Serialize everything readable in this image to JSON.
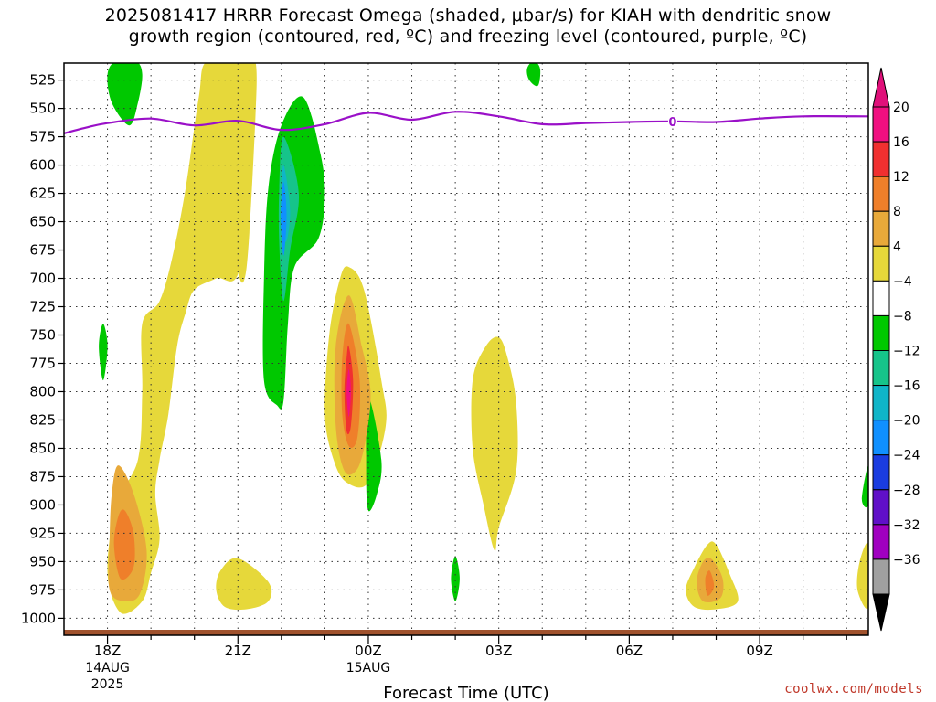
{
  "chart_data": {
    "type": "time-height contour (shaded omega with contour overlay)",
    "title_line1": "2025081417 HRRR Forecast Omega (shaded, μbar/s) for KIAH with dendritic snow",
    "title_line2": "growth region (contoured, red, ºC) and freezing level (contoured, purple, ºC)",
    "xlabel": "Forecast Time (UTC)",
    "y_axis": {
      "quantity": "pressure (hPa)",
      "inverted": true,
      "range": [
        510,
        1015
      ],
      "ticks": [
        525,
        550,
        575,
        600,
        625,
        650,
        675,
        700,
        725,
        750,
        775,
        800,
        825,
        850,
        875,
        900,
        925,
        950,
        975,
        1000
      ]
    },
    "x_axis": {
      "unit": "hours UTC from 2025-08-14 17Z",
      "range_hours": [
        17,
        35.5
      ],
      "ticks": [
        {
          "hour": 18,
          "label": "18Z",
          "sub1": "14AUG",
          "sub2": "2025"
        },
        {
          "hour": 21,
          "label": "21Z",
          "sub1": "",
          "sub2": ""
        },
        {
          "hour": 24,
          "label": "00Z",
          "sub1": "15AUG",
          "sub2": ""
        },
        {
          "hour": 27,
          "label": "03Z",
          "sub1": "",
          "sub2": ""
        },
        {
          "hour": 30,
          "label": "06Z",
          "sub1": "",
          "sub2": ""
        },
        {
          "hour": 33,
          "label": "09Z",
          "sub1": "",
          "sub2": ""
        }
      ]
    },
    "grid": true,
    "colorbar": {
      "placement": "right",
      "levels": [
        {
          "label": "20",
          "color": "#f01080"
        },
        {
          "label": "16",
          "color": "#f03030"
        },
        {
          "label": "12",
          "color": "#ef7f2a"
        },
        {
          "label": "8",
          "color": "#e8a93a"
        },
        {
          "label": "4",
          "color": "#e6d83a"
        },
        {
          "label": "−4",
          "color": "#ffffff"
        },
        {
          "label": "−8",
          "color": "#00c800"
        },
        {
          "label": "−12",
          "color": "#16c48a"
        },
        {
          "label": "−16",
          "color": "#10b5c8"
        },
        {
          "label": "−20",
          "color": "#1090ff"
        },
        {
          "label": "−24",
          "color": "#1a3ce0"
        },
        {
          "label": "−28",
          "color": "#6010c8"
        },
        {
          "label": "−32",
          "color": "#a000c0"
        },
        {
          "label": "−36",
          "color": "#a0a0a0"
        }
      ],
      "max_arrow_color": "#e0107a",
      "min_arrow_color": "#000000"
    },
    "freezing_level": {
      "label": "0",
      "color": "#9a10c8",
      "points": [
        [
          17.0,
          572
        ],
        [
          17.5,
          567
        ],
        [
          18.0,
          563
        ],
        [
          19.0,
          559
        ],
        [
          20.0,
          565
        ],
        [
          21.0,
          561
        ],
        [
          22.0,
          569
        ],
        [
          23.0,
          564
        ],
        [
          24.0,
          554
        ],
        [
          25.0,
          560
        ],
        [
          26.0,
          553
        ],
        [
          27.0,
          557
        ],
        [
          28.0,
          564
        ],
        [
          29.0,
          563
        ],
        [
          30.0,
          562
        ],
        [
          31.0,
          561.5
        ],
        [
          32.0,
          562
        ],
        [
          33.0,
          559
        ],
        [
          34.0,
          557
        ],
        [
          35.5,
          557
        ]
      ]
    },
    "surface_fill_color": "#a0522d",
    "omega_regions": [
      {
        "level": 4,
        "points": [
          [
            21.25,
            508
          ],
          [
            21.3,
            560
          ],
          [
            21.05,
            690
          ],
          [
            20.5,
            700
          ],
          [
            20.0,
            710
          ],
          [
            19.8,
            730
          ],
          [
            19.6,
            760
          ],
          [
            19.4,
            820
          ],
          [
            19.2,
            860
          ],
          [
            19.1,
            890
          ],
          [
            19.2,
            930
          ],
          [
            19.0,
            960
          ],
          [
            18.8,
            985
          ],
          [
            18.3,
            995
          ],
          [
            18.0,
            960
          ],
          [
            18.2,
            900
          ],
          [
            18.7,
            860
          ],
          [
            18.8,
            800
          ],
          [
            18.8,
            740
          ],
          [
            19.2,
            720
          ],
          [
            19.5,
            680
          ],
          [
            19.8,
            620
          ],
          [
            20.1,
            540
          ],
          [
            20.3,
            508
          ]
        ]
      },
      {
        "level": 4,
        "points": [
          [
            21.1,
            508
          ],
          [
            21.0,
            530
          ],
          [
            20.95,
            600
          ],
          [
            21.0,
            690
          ],
          [
            21.2,
            690
          ],
          [
            21.4,
            560
          ],
          [
            21.4,
            508
          ]
        ]
      },
      {
        "level": 4,
        "points": [
          [
            23.55,
            690
          ],
          [
            23.9,
            710
          ],
          [
            24.3,
            790
          ],
          [
            24.4,
            830
          ],
          [
            24.0,
            880
          ],
          [
            23.5,
            880
          ],
          [
            23.2,
            860
          ],
          [
            23.0,
            820
          ],
          [
            23.1,
            750
          ],
          [
            23.35,
            700
          ]
        ]
      },
      {
        "level": 4,
        "points": [
          [
            27.0,
            752
          ],
          [
            27.2,
            770
          ],
          [
            27.4,
            810
          ],
          [
            27.4,
            870
          ],
          [
            27.0,
            920
          ],
          [
            26.9,
            940
          ],
          [
            26.65,
            900
          ],
          [
            26.4,
            850
          ],
          [
            26.4,
            790
          ],
          [
            26.7,
            760
          ]
        ]
      },
      {
        "level": 4,
        "points": [
          [
            21.0,
            947
          ],
          [
            21.7,
            968
          ],
          [
            21.7,
            985
          ],
          [
            21.2,
            992
          ],
          [
            20.7,
            990
          ],
          [
            20.5,
            975
          ],
          [
            20.6,
            958
          ]
        ]
      },
      {
        "level": 4,
        "points": [
          [
            32.0,
            935
          ],
          [
            32.3,
            960
          ],
          [
            32.5,
            985
          ],
          [
            32.0,
            992
          ],
          [
            31.5,
            990
          ],
          [
            31.3,
            975
          ],
          [
            31.5,
            955
          ],
          [
            31.8,
            935
          ]
        ]
      },
      {
        "level": 4,
        "points": [
          [
            35.5,
            935
          ],
          [
            35.5,
            990
          ],
          [
            35.25,
            975
          ],
          [
            35.3,
            950
          ]
        ]
      },
      {
        "level": 8,
        "points": [
          [
            18.25,
            865
          ],
          [
            18.6,
            890
          ],
          [
            18.9,
            940
          ],
          [
            18.75,
            978
          ],
          [
            18.4,
            985
          ],
          [
            18.05,
            975
          ],
          [
            18.05,
            930
          ],
          [
            18.1,
            890
          ]
        ]
      },
      {
        "level": 8,
        "points": [
          [
            23.55,
            715
          ],
          [
            23.85,
            760
          ],
          [
            24.05,
            800
          ],
          [
            23.95,
            840
          ],
          [
            23.75,
            868
          ],
          [
            23.45,
            870
          ],
          [
            23.25,
            830
          ],
          [
            23.25,
            760
          ]
        ]
      },
      {
        "level": 8,
        "points": [
          [
            31.9,
            948
          ],
          [
            32.15,
            965
          ],
          [
            32.1,
            982
          ],
          [
            31.7,
            985
          ],
          [
            31.55,
            968
          ],
          [
            31.7,
            950
          ]
        ]
      },
      {
        "level": 12,
        "points": [
          [
            18.4,
            905
          ],
          [
            18.6,
            925
          ],
          [
            18.6,
            955
          ],
          [
            18.3,
            965
          ],
          [
            18.15,
            935
          ],
          [
            18.25,
            910
          ]
        ]
      },
      {
        "level": 12,
        "points": [
          [
            23.55,
            740
          ],
          [
            23.8,
            790
          ],
          [
            23.75,
            840
          ],
          [
            23.55,
            848
          ],
          [
            23.4,
            820
          ],
          [
            23.4,
            770
          ]
        ]
      },
      {
        "level": 12,
        "points": [
          [
            31.85,
            958
          ],
          [
            31.95,
            972
          ],
          [
            31.8,
            980
          ],
          [
            31.75,
            965
          ]
        ]
      },
      {
        "level": 16,
        "points": [
          [
            23.55,
            760
          ],
          [
            23.65,
            790
          ],
          [
            23.6,
            830
          ],
          [
            23.5,
            835
          ],
          [
            23.45,
            800
          ],
          [
            23.5,
            770
          ]
        ]
      },
      {
        "level": 20,
        "points": [
          [
            23.55,
            780
          ],
          [
            23.6,
            800
          ],
          [
            23.55,
            822
          ],
          [
            23.5,
            800
          ]
        ]
      },
      {
        "level": -4,
        "points": [
          [
            22.5,
            540
          ],
          [
            22.9,
            590
          ],
          [
            23.0,
            628
          ],
          [
            22.85,
            665
          ],
          [
            22.3,
            690
          ],
          [
            22.15,
            740
          ],
          [
            22.05,
            808
          ],
          [
            21.9,
            812
          ],
          [
            21.6,
            790
          ],
          [
            21.6,
            700
          ],
          [
            21.7,
            620
          ],
          [
            22.0,
            565
          ]
        ]
      },
      {
        "level": -4,
        "points": [
          [
            18.65,
            508
          ],
          [
            18.8,
            520
          ],
          [
            18.7,
            545
          ],
          [
            18.5,
            565
          ],
          [
            18.1,
            545
          ],
          [
            18.0,
            520
          ],
          [
            18.2,
            508
          ]
        ]
      },
      {
        "level": -4,
        "points": [
          [
            27.8,
            508
          ],
          [
            27.95,
            515
          ],
          [
            27.9,
            530
          ],
          [
            27.7,
            525
          ],
          [
            27.65,
            515
          ]
        ]
      },
      {
        "level": -4,
        "points": [
          [
            17.9,
            740
          ],
          [
            18.0,
            760
          ],
          [
            17.9,
            790
          ],
          [
            17.8,
            760
          ]
        ]
      },
      {
        "level": -4,
        "points": [
          [
            24.0,
            805
          ],
          [
            24.3,
            860
          ],
          [
            24.2,
            890
          ],
          [
            24.0,
            905
          ],
          [
            23.95,
            870
          ]
        ]
      },
      {
        "level": -4,
        "points": [
          [
            26.0,
            945
          ],
          [
            26.1,
            965
          ],
          [
            26.0,
            985
          ],
          [
            25.9,
            965
          ]
        ]
      },
      {
        "level": -4,
        "points": [
          [
            35.5,
            865
          ],
          [
            35.5,
            900
          ],
          [
            35.35,
            895
          ]
        ]
      },
      {
        "level": -8,
        "points": [
          [
            22.05,
            575
          ],
          [
            22.4,
            625
          ],
          [
            22.2,
            675
          ],
          [
            22.05,
            720
          ],
          [
            21.95,
            670
          ],
          [
            21.95,
            620
          ]
        ]
      },
      {
        "level": -12,
        "points": [
          [
            22.05,
            600
          ],
          [
            22.2,
            640
          ],
          [
            22.1,
            668
          ],
          [
            22.0,
            635
          ]
        ]
      },
      {
        "level": -16,
        "points": [
          [
            22.05,
            615
          ],
          [
            22.12,
            645
          ],
          [
            22.05,
            680
          ],
          [
            21.98,
            645
          ]
        ]
      }
    ]
  },
  "credit": "coolwx.com/models"
}
